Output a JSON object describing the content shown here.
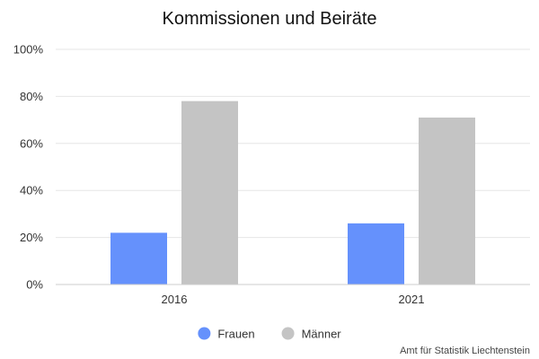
{
  "chart_data": {
    "type": "bar",
    "title": "Kommissionen und Beiräte",
    "categories": [
      "2016",
      "2021"
    ],
    "series": [
      {
        "name": "Frauen",
        "values": [
          22,
          26
        ],
        "color": "#6591FC"
      },
      {
        "name": "Männer",
        "values": [
          78,
          71
        ],
        "color": "#C4C4C4"
      }
    ],
    "ylim": [
      0,
      100
    ],
    "yticks": [
      "0%",
      "20%",
      "40%",
      "60%",
      "80%",
      "100%"
    ],
    "y_unit": "%",
    "grid": true,
    "legend_position": "bottom-center"
  },
  "source": "Amt für Statistik Liechtenstein"
}
